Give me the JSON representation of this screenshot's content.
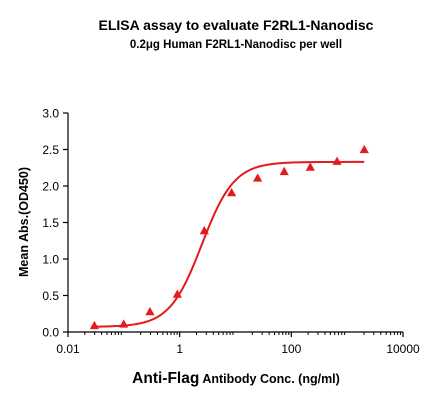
{
  "chart_data": {
    "type": "scatter",
    "title": "ELISA assay to evaluate F2RL1-Nanodisc",
    "subtitle": "0.2μg Human F2RL1-Nanodisc per well",
    "xlabel_main": "Anti-Flag",
    "xlabel_rest": " Antibody Conc. (ng/ml)",
    "ylabel": "Mean Abs.(OD450)",
    "x_scale": "log",
    "xlim": [
      0.01,
      10000
    ],
    "ylim": [
      0.0,
      3.0
    ],
    "x_ticks": [
      0.01,
      1,
      100,
      10000
    ],
    "x_tick_labels": [
      "0.01",
      "1",
      "100",
      "10000"
    ],
    "y_ticks": [
      0.0,
      0.5,
      1.0,
      1.5,
      2.0,
      2.5,
      3.0
    ],
    "y_tick_labels": [
      "0.0",
      "0.5",
      "1.0",
      "1.5",
      "2.0",
      "2.5",
      "3.0"
    ],
    "grid": false,
    "legend": "none",
    "series": [
      {
        "x": [
          0.0297,
          0.0994,
          0.2934,
          0.9083,
          2.764,
          8.515,
          24.92,
          74.59,
          218.6,
          658.8,
          2025
        ],
        "y": [
          0.09,
          0.11,
          0.28,
          0.52,
          1.39,
          1.91,
          2.11,
          2.2,
          2.26,
          2.34,
          2.5
        ],
        "marker": "triangle",
        "color": "#e41a1c"
      }
    ],
    "fit_curve": {
      "model": "4PL",
      "bottom": 0.07,
      "top": 2.33,
      "ec50": 2.5,
      "hill": 1.5,
      "x_range": [
        0.0297,
        2025
      ],
      "color": "#e41a1c"
    }
  }
}
